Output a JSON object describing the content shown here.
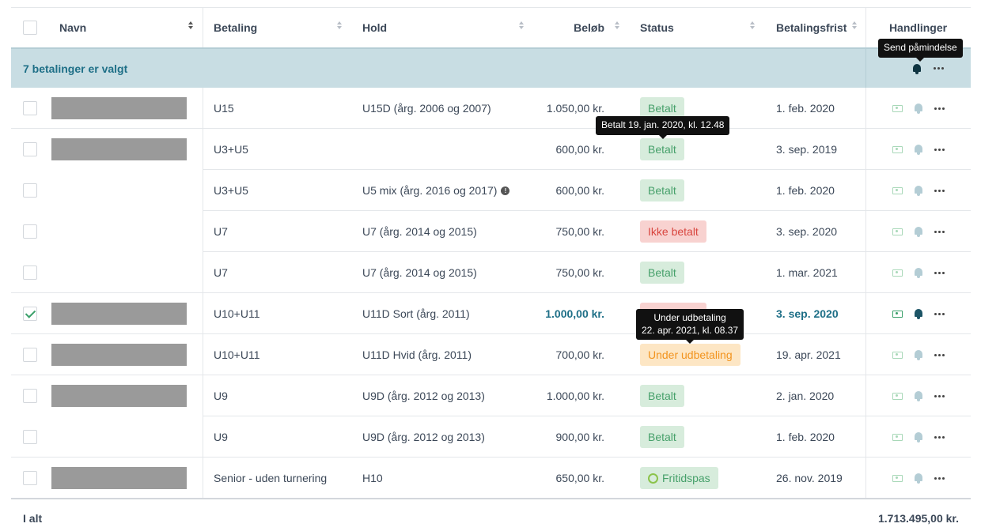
{
  "header": {
    "name": "Navn",
    "payment": "Betaling",
    "team": "Hold",
    "amount": "Beløb",
    "status": "Status",
    "deadline": "Betalingsfrist",
    "actions": "Handlinger"
  },
  "selection": {
    "label": "7 betalinger er valgt",
    "tooltip": "Send påmindelse"
  },
  "rows": [
    {
      "payment": "U15",
      "team": "U15D (årg. 2006 og 2007)",
      "amount": "1.050,00 kr.",
      "status": "Betalt",
      "deadline": "1. feb. 2020"
    },
    {
      "payment": "U3+U5",
      "team": "",
      "amount": "600,00 kr.",
      "status": "Betalt",
      "deadline": "3. sep. 2019"
    },
    {
      "payment": "U3+U5",
      "team": "U5 mix (årg. 2016 og 2017)",
      "amount": "600,00 kr.",
      "status": "Betalt",
      "deadline": "1. feb. 2020"
    },
    {
      "payment": "U7",
      "team": "U7 (årg. 2014 og 2015)",
      "amount": "750,00 kr.",
      "status": "Ikke betalt",
      "deadline": "3. sep. 2020"
    },
    {
      "payment": "U7",
      "team": "U7 (årg. 2014 og 2015)",
      "amount": "750,00 kr.",
      "status": "Betalt",
      "deadline": "1. mar. 2021"
    },
    {
      "payment": "U10+U11",
      "team": "U11D Sort (årg. 2011)",
      "amount": "1.000,00 kr.",
      "status": "",
      "deadline": "3. sep. 2020"
    },
    {
      "payment": "U10+U11",
      "team": "U11D Hvid (årg. 2011)",
      "amount": "700,00 kr.",
      "status": "Under udbetaling",
      "deadline": "19. apr. 2021"
    },
    {
      "payment": "U9",
      "team": "U9D (årg. 2012 og 2013)",
      "amount": "1.000,00 kr.",
      "status": "Betalt",
      "deadline": "2. jan. 2020"
    },
    {
      "payment": "U9",
      "team": "U9D (årg. 2012 og 2013)",
      "amount": "900,00 kr.",
      "status": "Betalt",
      "deadline": "1. feb. 2020"
    },
    {
      "payment": "Senior - uden turnering",
      "team": "H10",
      "amount": "650,00 kr.",
      "status": "Fritidspas",
      "deadline": "26. nov. 2019"
    }
  ],
  "tooltips": {
    "paid": "Betalt 19. jan. 2020, kl. 12.48",
    "payout_line1": "Under udbetaling",
    "payout_line2": "22. apr. 2021, kl. 08.37"
  },
  "info_glyph": "!",
  "footer": {
    "label": "I alt",
    "total": "1.713.495,00 kr."
  },
  "colors": {
    "selection_bg": "#c8dde3",
    "accent": "#1e6f87",
    "paid_bg": "#d7ecdc",
    "unpaid_bg": "#f8d2d0",
    "pending_bg": "#fde6c4"
  }
}
